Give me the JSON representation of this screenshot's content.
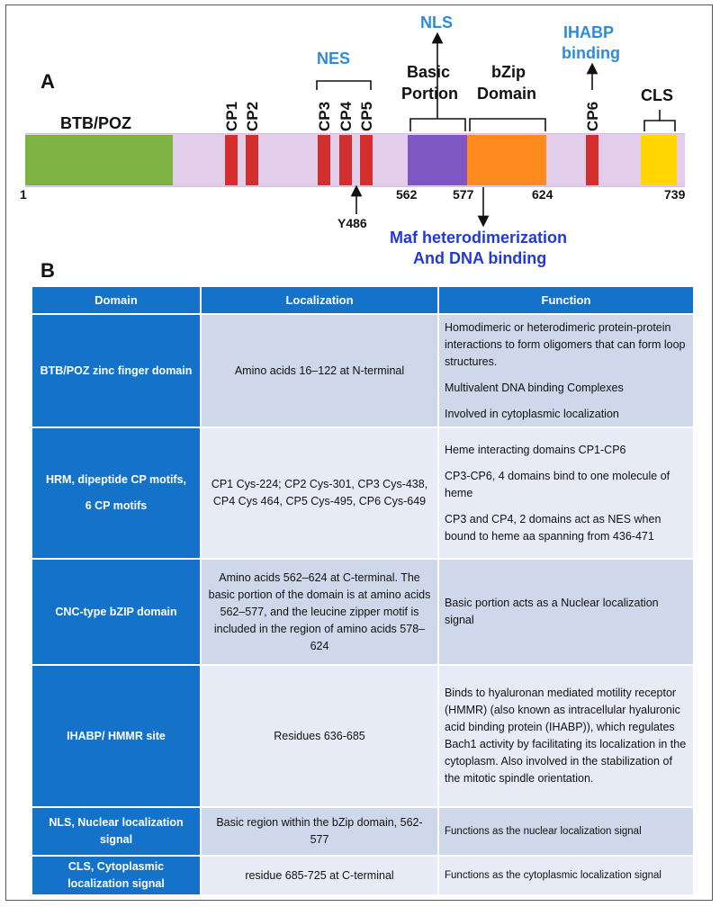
{
  "panel_a": {
    "letter": "A",
    "domain_labels": {
      "btb": "BTB/POZ",
      "basic_1": "Basic",
      "basic_2": "Portion",
      "bzip_1": "bZip",
      "bzip_2": "Domain",
      "cls": "CLS"
    },
    "annotations": {
      "nes": "NES",
      "nls": "NLS",
      "ihabp_1": "IHABP",
      "ihabp_2": "binding",
      "y486": "Y486",
      "maf_1": "Maf heterodimerization",
      "maf_2": "And DNA binding"
    },
    "cp_labels": [
      "CP1",
      "CP2",
      "CP3",
      "CP4",
      "CP5",
      "CP6"
    ],
    "positions": [
      "1",
      "562",
      "577",
      "624",
      "739"
    ],
    "colors": {
      "track": "#e2cdea",
      "btb": "#7cb342",
      "cp": "#d32f2f",
      "basic": "#7e57c2",
      "bzip": "#ff8a1e",
      "cls": "#ffd600",
      "annotation_blue": "#2e8bd8",
      "annotation_royal": "#2239d6"
    }
  },
  "panel_b": {
    "letter": "B",
    "headers": [
      "Domain",
      "Localization",
      "Function"
    ],
    "rows": [
      {
        "domain": "BTB/POZ zinc finger domain",
        "localization": "Amino acids 16–122 at N-terminal",
        "function": [
          "Homodimeric or heterodimeric protein-protein interactions to form oligomers that can form loop structures.",
          "Multivalent DNA binding Complexes",
          "Involved in cytoplasmic localization"
        ]
      },
      {
        "domain_1": "HRM, dipeptide CP motifs,",
        "domain_2": "6 CP motifs",
        "localization": "CP1 Cys-224;  CP2 Cys-301,  CP3 Cys-438,  CP4 Cys 464,  CP5 Cys-495, CP6 Cys-649",
        "function": [
          "Heme interacting domains CP1-CP6",
          "CP3-CP6, 4 domains bind to one molecule of heme",
          "CP3 and CP4, 2 domains act as NES when bound to heme aa spanning from 436-471"
        ]
      },
      {
        "domain": "CNC-type bZIP domain",
        "localization": "Amino acids 562–624 at C-terminal. The basic portion of the domain is at amino acids 562–577, and the leucine zipper motif is included in the region of amino acids 578–624",
        "function": [
          "Basic portion acts as a Nuclear localization signal"
        ]
      },
      {
        "domain": "IHABP/ HMMR site",
        "localization": "Residues 636-685",
        "function": [
          "Binds to hyaluronan mediated motility receptor (HMMR) (also known as intracellular hyaluronic acid binding protein (IHABP)), which regulates Bach1 activity by facilitating its localization in the cytoplasm. Also involved in the stabilization of the mitotic spindle orientation."
        ]
      },
      {
        "domain": "NLS, Nuclear localization signal",
        "localization": "Basic region within the bZip domain, 562-577",
        "function": [
          "Functions as the nuclear localization signal"
        ]
      },
      {
        "domain": "CLS, Cytoplasmic localization signal",
        "localization": "residue 685-725 at C-terminal",
        "function": [
          "Functions as the cytoplasmic localization signal"
        ]
      }
    ]
  }
}
